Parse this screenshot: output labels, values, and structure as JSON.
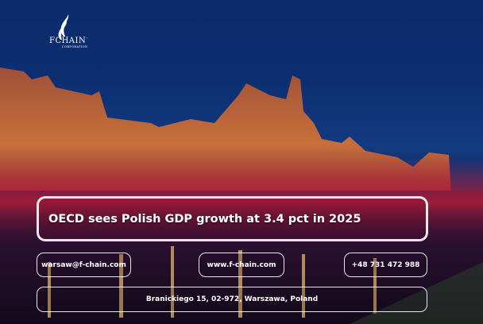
{
  "brand": {
    "name": "FCHAIN",
    "trademark": "™",
    "subtitle": "CORPORATION"
  },
  "headline": "OECD sees Polish GDP growth at 3.4 pct in 2025",
  "contacts": {
    "email": "warsaw@f-chain.com",
    "website": "www.f-chain.com",
    "phone": "+48 731 472 988",
    "address": "Branickiego 15, 02-972, Warszawa, Poland"
  },
  "colors": {
    "sky": "#0d2f72",
    "glow": "#c0203a",
    "border": "#ffffff"
  }
}
